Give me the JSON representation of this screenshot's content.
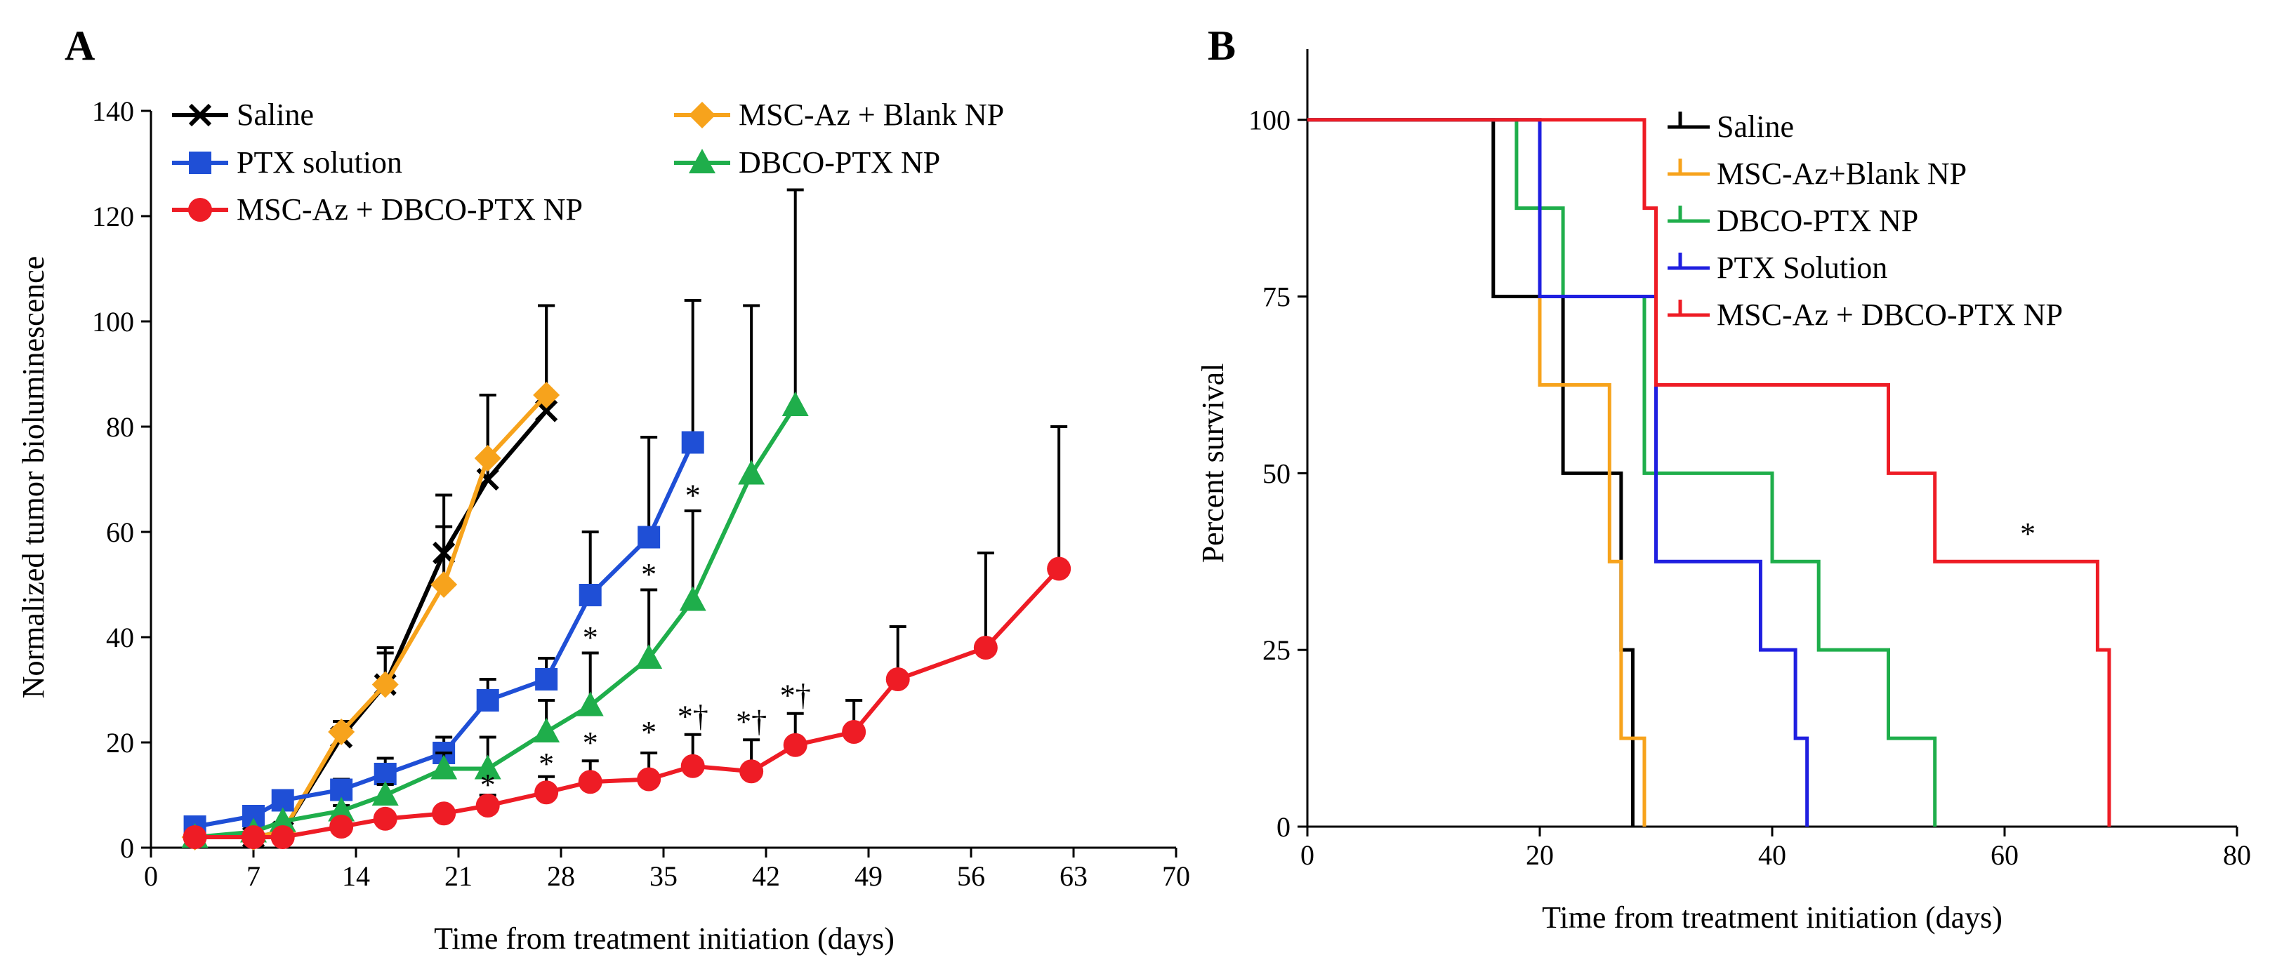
{
  "panels": [
    {
      "label": "A",
      "chart_data": {
        "type": "line",
        "title": "",
        "xlabel": "Time from treatment initiation (days)",
        "ylabel": "Normalized tumor bioluminescence",
        "xlim": [
          0,
          70
        ],
        "ylim": [
          0,
          140
        ],
        "xticks": [
          0,
          7,
          14,
          21,
          28,
          35,
          42,
          49,
          56,
          63,
          70
        ],
        "yticks": [
          0,
          20,
          40,
          60,
          80,
          100,
          120,
          140
        ],
        "grid": false,
        "legend_position": "top",
        "series": [
          {
            "name": "Saline",
            "color": "#000000",
            "marker": "x",
            "x": [
              3,
              7,
              9,
              13,
              16,
              20,
              23,
              27
            ],
            "y": [
              2,
              2,
              3,
              21,
              31,
              56,
              70,
              83
            ],
            "err": [
              0,
              0,
              0,
              3,
              7,
              11,
              16,
              20
            ]
          },
          {
            "name": "MSC-Az + Blank  NP",
            "color": "#f7a31c",
            "marker": "diamond",
            "x": [
              3,
              7,
              9,
              13,
              16,
              20,
              23,
              27
            ],
            "y": [
              2,
              2,
              3,
              22,
              31,
              50,
              74,
              86
            ],
            "err": [
              0,
              0,
              0,
              2,
              6,
              11,
              12,
              17
            ]
          },
          {
            "name": "PTX solution",
            "color": "#1f4fd6",
            "marker": "square",
            "x": [
              3,
              7,
              9,
              13,
              16,
              20,
              23,
              27,
              30,
              34,
              37
            ],
            "y": [
              4,
              6,
              9,
              11,
              14,
              18,
              28,
              32,
              48,
              59,
              77
            ],
            "err": [
              0,
              0,
              0,
              2,
              3,
              3,
              4,
              4,
              12,
              19,
              27
            ]
          },
          {
            "name": "DBCO-PTX NP",
            "color": "#1fae4b",
            "marker": "triangle",
            "x": [
              3,
              7,
              9,
              13,
              16,
              20,
              23,
              27,
              30,
              34,
              37,
              41,
              44
            ],
            "y": [
              2,
              3,
              5,
              7,
              10,
              15,
              15,
              22,
              27,
              36,
              47,
              71,
              84
            ],
            "err": [
              0,
              0,
              0,
              1,
              2,
              3,
              6,
              6,
              10,
              13,
              17,
              32,
              41
            ]
          },
          {
            "name": "MSC-Az + DBCO-PTX  NP",
            "color": "#ee1c25",
            "marker": "circle",
            "x": [
              3,
              7,
              9,
              13,
              16,
              20,
              23,
              27,
              30,
              34,
              37,
              41,
              44,
              48,
              51,
              57,
              62
            ],
            "y": [
              2,
              2,
              2,
              4,
              5.5,
              6.5,
              8,
              10.5,
              12.5,
              13,
              15.5,
              14.5,
              19.5,
              22,
              32,
              38,
              53
            ],
            "err": [
              0,
              0,
              0,
              0,
              0,
              0,
              2,
              3,
              4,
              5,
              6,
              6,
              6,
              6,
              10,
              18,
              27
            ]
          }
        ],
        "annotations": [
          {
            "text": "*",
            "x": 23,
            "y": 10
          },
          {
            "text": "*",
            "x": 27,
            "y": 14
          },
          {
            "text": "*",
            "x": 30,
            "y": 18
          },
          {
            "text": "*",
            "x": 30,
            "y": 38
          },
          {
            "text": "*",
            "x": 34,
            "y": 20
          },
          {
            "text": "*",
            "x": 34,
            "y": 50
          },
          {
            "text": "*",
            "x": 37,
            "y": 65
          },
          {
            "text": "*†",
            "x": 37,
            "y": 23
          },
          {
            "text": "*†",
            "x": 41,
            "y": 22
          },
          {
            "text": "*†",
            "x": 44,
            "y": 27
          }
        ]
      }
    },
    {
      "label": "B",
      "chart_data": {
        "type": "line",
        "title": "",
        "xlabel": "Time from treatment initiation (days)",
        "ylabel": "Percent survival",
        "xlim": [
          0,
          80
        ],
        "ylim": [
          0,
          110
        ],
        "xticks": [
          0,
          20,
          40,
          60,
          80
        ],
        "yticks": [
          0,
          25,
          50,
          75,
          100
        ],
        "grid": false,
        "legend_position": "top-right",
        "series": [
          {
            "name": "Saline",
            "color": "#000000",
            "x": [
              0,
              16,
              22,
              27,
              28
            ],
            "y": [
              100,
              75,
              50,
              25,
              0
            ]
          },
          {
            "name": "MSC-Az+Blank NP",
            "color": "#f7a31c",
            "x": [
              0,
              19,
              20,
              26,
              27,
              28,
              29
            ],
            "y": [
              100,
              100,
              62.5,
              37.5,
              12.5,
              12.5,
              0
            ]
          },
          {
            "name": "DBCO-PTX NP",
            "color": "#1fae4b",
            "x": [
              0,
              18,
              22,
              29,
              40,
              44,
              50,
              54
            ],
            "y": [
              100,
              87.5,
              75,
              50,
              37.5,
              25,
              12.5,
              0
            ]
          },
          {
            "name": "PTX Solution",
            "color": "#1f1fe0",
            "x": [
              0,
              20,
              30,
              39,
              42,
              43
            ],
            "y": [
              100,
              75,
              37.5,
              25,
              12.5,
              0
            ]
          },
          {
            "name": "MSC-Az + DBCO-PTX NP",
            "color": "#ee1c25",
            "x": [
              0,
              29,
              30,
              50,
              54,
              68,
              69
            ],
            "y": [
              100,
              87.5,
              62.5,
              50,
              37.5,
              25,
              0
            ]
          }
        ],
        "annotations": [
          {
            "text": "*",
            "x": 62,
            "y": 40
          }
        ]
      }
    }
  ]
}
